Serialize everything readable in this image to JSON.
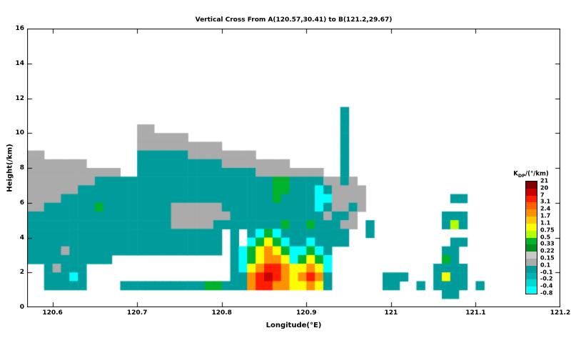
{
  "chart_data": {
    "type": "heatmap",
    "title": "Vertical Cross From A(120.57,30.41) to B(121.2,29.67)",
    "xlabel": "Longitude(°E)",
    "ylabel": "Height(/km)",
    "xlim": [
      120.57,
      121.2
    ],
    "ylim": [
      0,
      16
    ],
    "x_ticks": [
      120.6,
      120.7,
      120.8,
      120.9,
      121,
      121.1,
      121.2
    ],
    "x_tick_labels": [
      "120.6",
      "120.7",
      "120.8",
      "120.9",
      "121",
      "121.1",
      "121.2"
    ],
    "y_ticks": [
      0,
      2,
      4,
      6,
      8,
      10,
      12,
      14,
      16
    ],
    "y_tick_labels": [
      "0",
      "2",
      "4",
      "6",
      "8",
      "10",
      "12",
      "14",
      "16"
    ],
    "grid_lines": "off",
    "colorbar": {
      "title_main": "K",
      "title_sub": "DP",
      "title_suffix": "/(°/km)",
      "tick_labels": [
        "21",
        "20",
        "7",
        "3.1",
        "2.4",
        "1.7",
        "1.1",
        "0.75",
        "0.5",
        "0.33",
        "0.22",
        "0.15",
        "0.1",
        "-0.1",
        "-0.2",
        "-0.4",
        "-0.8"
      ],
      "segment_colors_top_to_bottom": [
        "#800000",
        "#C80000",
        "#FF1E00",
        "#FF6000",
        "#FF9000",
        "#FFC800",
        "#FFFF00",
        "#B4FF00",
        "#00B22C",
        "#008F1F",
        "#C8C8C8",
        "#ABABAB",
        "#009C9C",
        "#00B4B4",
        "#00D7D7",
        "#00FFFF"
      ]
    },
    "grid": {
      "x_start": 120.57,
      "x_step": 0.01,
      "cols": 63,
      "y_top": 12.0,
      "y_step": 0.5,
      "rows": 24,
      "palette": {
        "t": "#009C9C",
        "g": "#ABABAB",
        "G": "#00B22C",
        "Y": "#B4FF00",
        "y": "#FFFF00",
        "o": "#FF9000",
        "r": "#FF1E00",
        "d": "#C80000",
        "c": "#00FFFF"
      },
      "code_kdp_ranges": {
        "c": "-0.8 to -0.2",
        "t": "-0.1 to 0.1",
        "g": "0.1 to 0.22",
        "G": "0.22 to 0.5",
        "Y": "0.5 to 0.75",
        "y": "0.75 to 1.7",
        "o": "1.7 to 3.1",
        "r": "3.1 to 7",
        "d": "7 to 20"
      },
      "rows_top_to_bottom": [
        "",
        ".....................................t",
        ".....................................t",
        ".............gg......................t",
        ".............gggggg..................t",
        ".............gggggggggg..............t",
        "gg...........ttttttgggggggg..........t",
        "ggggggg......ttttttttttgggggggg......t",
        "ggggggggggg..ttttttttttttttgggggggg..t",
        "ggggggggtttttttttttttttttttttGGttttggtg",
        "ggggggtttttttttttttttttttttttGGtttctgggg",
        "ggggtttttttttttttttttttttttttGttttccgggg..........tt",
        "ggttttttGttttttttggggggtttttttttttctggtg",
        "tttttttttttttttttgggggggtttttttttttgttg..........ttt",
        "tttttttttttttttttgggggttttttttGttGtttgg.t........tYt",
        "ttttttttttttttttttttttt.t.tcGctttttttt..t",
        "ttttttttttttttttttttttt.t.cGyGcttctttt............tt",
        "ttttgtttttttttttttttttt.tcGyoyGccGct.............tt",
        "tttttttttt..............tcGyooycGyGc.............Gt",
        "..tgttt.................tcyorroyyoyc............tttt",
        "..tttct.................ttordroyorot......ttt...tytt",
        "..ttttt....ttttttttttGGtttorrooyyoyt......tt..t.tttt.t",
        ".................................................tt",
        ""
      ]
    }
  }
}
